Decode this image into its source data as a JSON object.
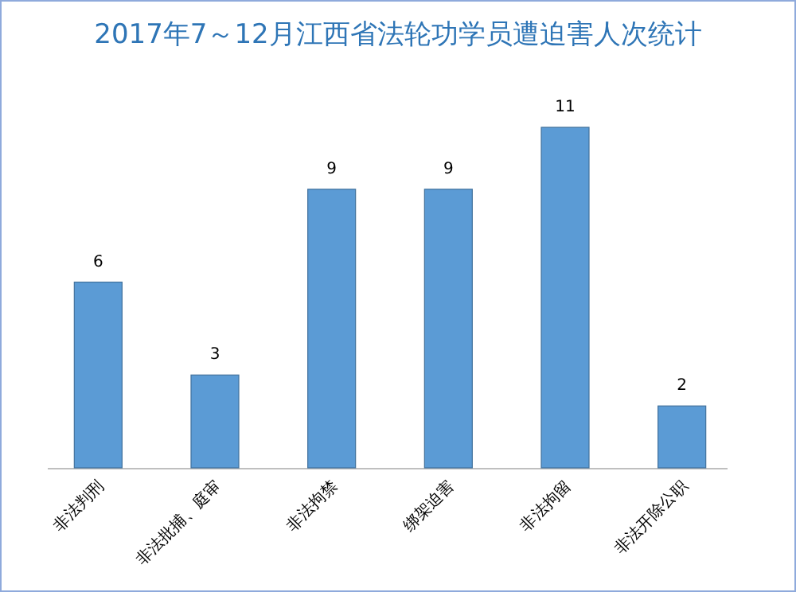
{
  "chart_data": {
    "type": "bar",
    "title": "2017年7～12月江西省法轮功学员遭迫害人次统计",
    "categories": [
      "非法判刑",
      "非法批捕、庭审",
      "非法拘禁",
      "绑架迫害",
      "非法拘留",
      "非法开除公职"
    ],
    "values": [
      6,
      3,
      9,
      9,
      11,
      2
    ],
    "color": "#5b9bd5",
    "data_labels": true
  }
}
